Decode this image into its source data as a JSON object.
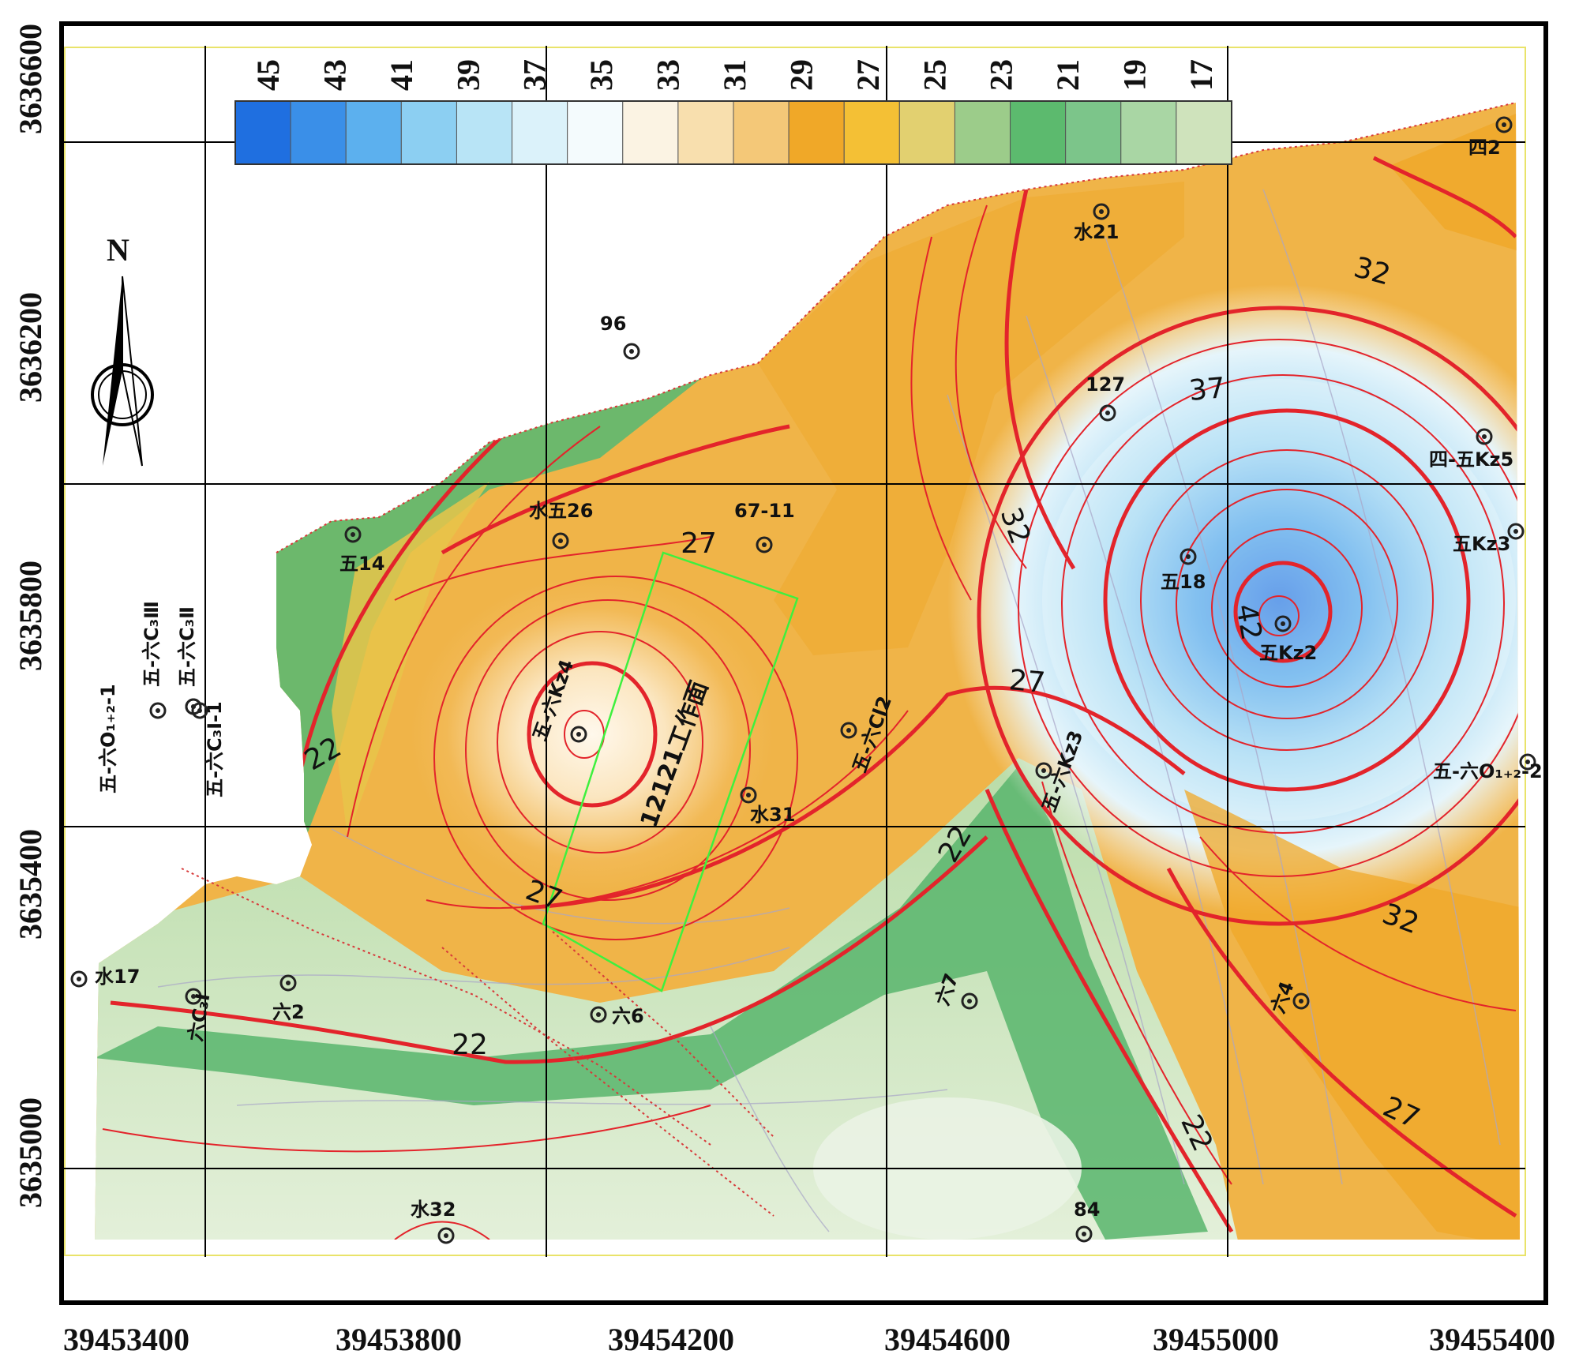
{
  "axes": {
    "x_ticks": [
      "39453400",
      "39453800",
      "39454200",
      "39454600",
      "39455000",
      "39455400"
    ],
    "y_ticks": [
      "3636600",
      "3636200",
      "3635800",
      "3635400",
      "3635000"
    ]
  },
  "north_label": "N",
  "legend": {
    "labels": [
      "45",
      "43",
      "41",
      "39",
      "37",
      "35",
      "33",
      "31",
      "29",
      "27",
      "25",
      "23",
      "21",
      "19",
      "17"
    ],
    "colors": [
      "#1f6fe0",
      "#3a8fe8",
      "#5cb0ee",
      "#8ccff2",
      "#b8e4f6",
      "#dbf2fa",
      "#f4fbfd",
      "#fbf3e3",
      "#f8dfae",
      "#f4c878",
      "#f0a828",
      "#f4c035",
      "#e2d070",
      "#9ccc8a",
      "#5cba6e",
      "#7cc58a",
      "#a9d6a4",
      "#cfe3bc"
    ]
  },
  "contour_labels": [
    "32",
    "37",
    "32",
    "42",
    "27",
    "27",
    "22",
    "22",
    "27",
    "22",
    "32",
    "22",
    "27"
  ],
  "panel_label": "12121工作面",
  "wells": [
    {
      "name": "96"
    },
    {
      "name": "水21"
    },
    {
      "name": "四2"
    },
    {
      "name": "127"
    },
    {
      "name": "四-五Kz5"
    },
    {
      "name": "水五26"
    },
    {
      "name": "67-11"
    },
    {
      "name": "五14"
    },
    {
      "name": "五18"
    },
    {
      "name": "五Kz3"
    },
    {
      "name": "五Kz2"
    },
    {
      "name": "五-六Kz4"
    },
    {
      "name": "五-六Cl2"
    },
    {
      "name": "水31"
    },
    {
      "name": "五-六Kz3"
    },
    {
      "name": "五-六O₁₊₂-2"
    },
    {
      "name": "五-六C₃Ⅲ"
    },
    {
      "name": "五-六C₃Ⅱ"
    },
    {
      "name": "五-六O₁₊₂-1"
    },
    {
      "name": "五-六C₃Ⅰ-1"
    },
    {
      "name": "水17"
    },
    {
      "name": "六C₃Ⅰ"
    },
    {
      "name": "六2"
    },
    {
      "name": "六6"
    },
    {
      "name": "六7"
    },
    {
      "name": "六4"
    },
    {
      "name": "水32"
    },
    {
      "name": "84"
    }
  ]
}
